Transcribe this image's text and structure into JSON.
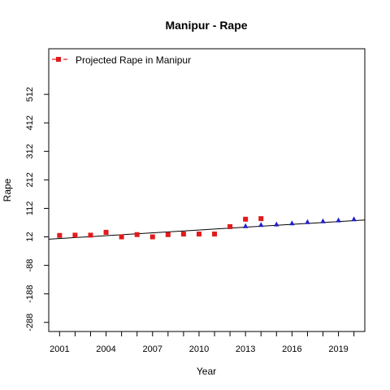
{
  "chart_data": {
    "type": "scatter",
    "title": "Manipur  -  Rape",
    "xlabel": "Year",
    "ylabel": "Rape",
    "xlim": [
      2000.3,
      2020.7
    ],
    "ylim": [
      -320,
      672
    ],
    "x_ticks": [
      2001,
      2002,
      2003,
      2004,
      2005,
      2006,
      2007,
      2008,
      2009,
      2010,
      2011,
      2012,
      2013,
      2014,
      2015,
      2016,
      2017,
      2018,
      2019,
      2020
    ],
    "x_tick_labels": [
      "2001",
      "2004",
      "2007",
      "2010",
      "2013",
      "2016",
      "2019"
    ],
    "y_ticks": [
      -288,
      -188,
      -88,
      12,
      112,
      212,
      312,
      412,
      512
    ],
    "y_tick_labels": [
      "-288",
      "-188",
      "-88",
      "12",
      "112",
      "212",
      "312",
      "412",
      "512"
    ],
    "legend": {
      "position": "top-left",
      "label": "Projected Rape  in  Manipur"
    },
    "colors": {
      "actual": "#e31a1c",
      "projected": "#1f1fcc",
      "trend": "#000000"
    },
    "series": [
      {
        "marker": "square",
        "color": "#e31a1c",
        "points": [
          [
            2001,
            17
          ],
          [
            2002,
            18
          ],
          [
            2003,
            18
          ],
          [
            2004,
            28
          ],
          [
            2005,
            12
          ],
          [
            2006,
            20
          ],
          [
            2007,
            12
          ],
          [
            2008,
            20
          ],
          [
            2009,
            22
          ],
          [
            2010,
            22
          ],
          [
            2011,
            22
          ],
          [
            2012,
            48
          ],
          [
            2013,
            74
          ],
          [
            2014,
            76
          ]
        ]
      },
      {
        "marker": "triangle",
        "color": "#1f1fcc",
        "points": [
          [
            2013,
            50
          ],
          [
            2014,
            54
          ],
          [
            2015,
            56
          ],
          [
            2016,
            60
          ],
          [
            2017,
            64
          ],
          [
            2018,
            67
          ],
          [
            2019,
            70
          ],
          [
            2020,
            74
          ]
        ]
      }
    ],
    "trend_line": {
      "slope": 3.3,
      "intercept_x": 2000.3,
      "intercept_y": 4
    }
  }
}
